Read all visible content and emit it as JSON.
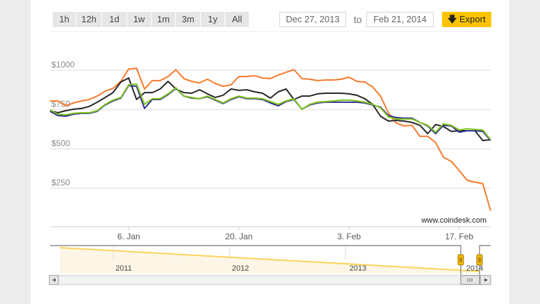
{
  "toolbar": {
    "ranges": [
      "1h",
      "12h",
      "1d",
      "1w",
      "1m",
      "3m",
      "1y",
      "All"
    ],
    "from_date": "Dec 27, 2013",
    "to_label": "to",
    "to_date": "Feb 21, 2014",
    "export_label": "Export",
    "export_icon": "arrow-down-icon"
  },
  "colors": {
    "orange": "#f7792b",
    "black": "#262626",
    "blue": "#2e2e92",
    "green": "#80c41c",
    "accent": "#fcc400",
    "navigator_line": "#fcd35a",
    "navigator_fill": "#fdf6e6"
  },
  "chart_data": {
    "type": "line",
    "start_date": "Dec 27, 2013",
    "x_unit": "days since Dec 27, 2013",
    "y_ticks": [
      {
        "value": 250,
        "label": "$250"
      },
      {
        "value": 500,
        "label": "$500"
      },
      {
        "value": 750,
        "label": "$750"
      },
      {
        "value": 1000,
        "label": "$1000"
      }
    ],
    "x_ticks": [
      {
        "day": 10,
        "label": "6. Jan"
      },
      {
        "day": 24,
        "label": "20. Jan"
      },
      {
        "day": 38,
        "label": "3. Feb"
      },
      {
        "day": 52,
        "label": "17. Feb"
      }
    ],
    "ylim": [
      0,
      1150
    ],
    "xlim": [
      0,
      56
    ],
    "grid": true,
    "watermark": "www.coindesk.com",
    "series": [
      {
        "name": "orange",
        "color": "#f7792b",
        "values": [
          805,
          805,
          774,
          792,
          805,
          814,
          836,
          867,
          885,
          929,
          1009,
          1013,
          881,
          934,
          934,
          960,
          1004,
          947,
          929,
          920,
          943,
          916,
          898,
          907,
          960,
          960,
          965,
          951,
          947,
          969,
          987,
          1004,
          947,
          943,
          934,
          938,
          938,
          943,
          956,
          929,
          925,
          894,
          836,
          730,
          664,
          646,
          650,
          580,
          580,
          540,
          447,
          420,
          363,
          301,
          288,
          279,
          106
        ]
      },
      {
        "name": "black",
        "color": "#262626",
        "values": [
          743,
          730,
          743,
          752,
          757,
          770,
          797,
          827,
          858,
          925,
          951,
          814,
          858,
          858,
          881,
          929,
          881,
          858,
          854,
          876,
          850,
          827,
          841,
          881,
          872,
          876,
          863,
          854,
          823,
          863,
          881,
          814,
          836,
          836,
          850,
          854,
          854,
          854,
          850,
          841,
          819,
          783,
          708,
          677,
          681,
          677,
          668,
          650,
          597,
          655,
          642,
          611,
          615,
          615,
          615,
          553,
          558
        ]
      },
      {
        "name": "blue",
        "color": "#2e2e92",
        "values": [
          739,
          712,
          708,
          721,
          726,
          726,
          739,
          779,
          805,
          823,
          903,
          898,
          757,
          814,
          814,
          845,
          885,
          836,
          823,
          819,
          832,
          810,
          788,
          814,
          832,
          819,
          819,
          814,
          792,
          774,
          801,
          814,
          752,
          779,
          792,
          797,
          797,
          797,
          797,
          797,
          792,
          779,
          765,
          712,
          699,
          695,
          695,
          668,
          646,
          597,
          650,
          646,
          606,
          615,
          615,
          611,
          553
        ]
      },
      {
        "name": "green",
        "color": "#80c41c",
        "values": [
          748,
          721,
          717,
          726,
          730,
          730,
          743,
          783,
          810,
          827,
          907,
          912,
          783,
          819,
          819,
          850,
          889,
          836,
          827,
          819,
          836,
          814,
          792,
          819,
          836,
          823,
          823,
          819,
          801,
          783,
          805,
          819,
          752,
          783,
          797,
          801,
          805,
          810,
          810,
          805,
          797,
          783,
          761,
          704,
          690,
          690,
          690,
          668,
          650,
          606,
          659,
          650,
          620,
          628,
          624,
          620,
          558
        ]
      }
    ],
    "navigator": {
      "years": [
        "2011",
        "2012",
        "2013",
        "2014"
      ],
      "selected_range": [
        "Dec 27, 2013",
        "Feb 21, 2014"
      ]
    }
  }
}
